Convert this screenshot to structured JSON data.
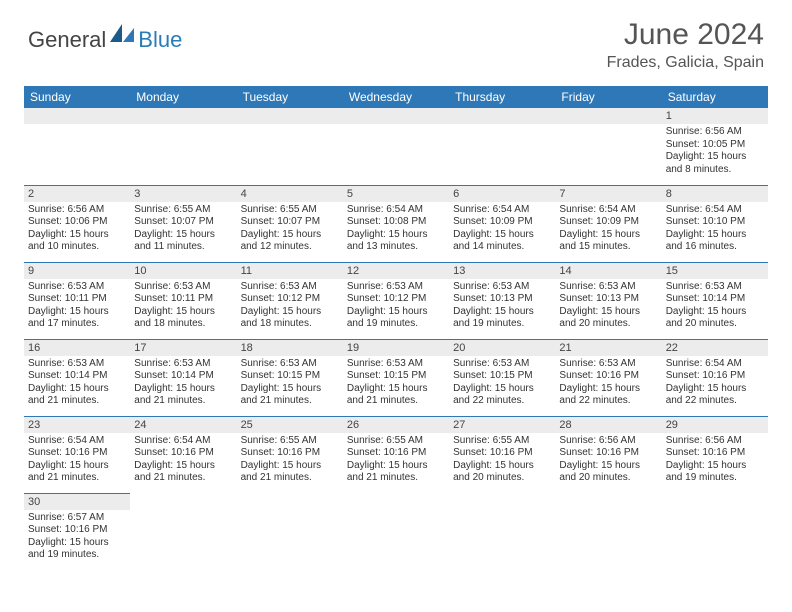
{
  "brand": {
    "general": "General",
    "blue": "Blue"
  },
  "title": {
    "month": "June 2024",
    "location": "Frades, Galicia, Spain"
  },
  "weekdays": [
    "Sunday",
    "Monday",
    "Tuesday",
    "Wednesday",
    "Thursday",
    "Friday",
    "Saturday"
  ],
  "colors": {
    "header_bg": "#2f78b7",
    "row_divider": "#2f78b7",
    "daynum_bg": "#ececec",
    "text": "#333333",
    "title_text": "#555555"
  },
  "weeks": [
    [
      null,
      null,
      null,
      null,
      null,
      null,
      {
        "n": "1",
        "sr": "Sunrise: 6:56 AM",
        "ss": "Sunset: 10:05 PM",
        "dl1": "Daylight: 15 hours",
        "dl2": "and 8 minutes."
      }
    ],
    [
      {
        "n": "2",
        "sr": "Sunrise: 6:56 AM",
        "ss": "Sunset: 10:06 PM",
        "dl1": "Daylight: 15 hours",
        "dl2": "and 10 minutes."
      },
      {
        "n": "3",
        "sr": "Sunrise: 6:55 AM",
        "ss": "Sunset: 10:07 PM",
        "dl1": "Daylight: 15 hours",
        "dl2": "and 11 minutes."
      },
      {
        "n": "4",
        "sr": "Sunrise: 6:55 AM",
        "ss": "Sunset: 10:07 PM",
        "dl1": "Daylight: 15 hours",
        "dl2": "and 12 minutes."
      },
      {
        "n": "5",
        "sr": "Sunrise: 6:54 AM",
        "ss": "Sunset: 10:08 PM",
        "dl1": "Daylight: 15 hours",
        "dl2": "and 13 minutes."
      },
      {
        "n": "6",
        "sr": "Sunrise: 6:54 AM",
        "ss": "Sunset: 10:09 PM",
        "dl1": "Daylight: 15 hours",
        "dl2": "and 14 minutes."
      },
      {
        "n": "7",
        "sr": "Sunrise: 6:54 AM",
        "ss": "Sunset: 10:09 PM",
        "dl1": "Daylight: 15 hours",
        "dl2": "and 15 minutes."
      },
      {
        "n": "8",
        "sr": "Sunrise: 6:54 AM",
        "ss": "Sunset: 10:10 PM",
        "dl1": "Daylight: 15 hours",
        "dl2": "and 16 minutes."
      }
    ],
    [
      {
        "n": "9",
        "sr": "Sunrise: 6:53 AM",
        "ss": "Sunset: 10:11 PM",
        "dl1": "Daylight: 15 hours",
        "dl2": "and 17 minutes."
      },
      {
        "n": "10",
        "sr": "Sunrise: 6:53 AM",
        "ss": "Sunset: 10:11 PM",
        "dl1": "Daylight: 15 hours",
        "dl2": "and 18 minutes."
      },
      {
        "n": "11",
        "sr": "Sunrise: 6:53 AM",
        "ss": "Sunset: 10:12 PM",
        "dl1": "Daylight: 15 hours",
        "dl2": "and 18 minutes."
      },
      {
        "n": "12",
        "sr": "Sunrise: 6:53 AM",
        "ss": "Sunset: 10:12 PM",
        "dl1": "Daylight: 15 hours",
        "dl2": "and 19 minutes."
      },
      {
        "n": "13",
        "sr": "Sunrise: 6:53 AM",
        "ss": "Sunset: 10:13 PM",
        "dl1": "Daylight: 15 hours",
        "dl2": "and 19 minutes."
      },
      {
        "n": "14",
        "sr": "Sunrise: 6:53 AM",
        "ss": "Sunset: 10:13 PM",
        "dl1": "Daylight: 15 hours",
        "dl2": "and 20 minutes."
      },
      {
        "n": "15",
        "sr": "Sunrise: 6:53 AM",
        "ss": "Sunset: 10:14 PM",
        "dl1": "Daylight: 15 hours",
        "dl2": "and 20 minutes."
      }
    ],
    [
      {
        "n": "16",
        "sr": "Sunrise: 6:53 AM",
        "ss": "Sunset: 10:14 PM",
        "dl1": "Daylight: 15 hours",
        "dl2": "and 21 minutes."
      },
      {
        "n": "17",
        "sr": "Sunrise: 6:53 AM",
        "ss": "Sunset: 10:14 PM",
        "dl1": "Daylight: 15 hours",
        "dl2": "and 21 minutes."
      },
      {
        "n": "18",
        "sr": "Sunrise: 6:53 AM",
        "ss": "Sunset: 10:15 PM",
        "dl1": "Daylight: 15 hours",
        "dl2": "and 21 minutes."
      },
      {
        "n": "19",
        "sr": "Sunrise: 6:53 AM",
        "ss": "Sunset: 10:15 PM",
        "dl1": "Daylight: 15 hours",
        "dl2": "and 21 minutes."
      },
      {
        "n": "20",
        "sr": "Sunrise: 6:53 AM",
        "ss": "Sunset: 10:15 PM",
        "dl1": "Daylight: 15 hours",
        "dl2": "and 22 minutes."
      },
      {
        "n": "21",
        "sr": "Sunrise: 6:53 AM",
        "ss": "Sunset: 10:16 PM",
        "dl1": "Daylight: 15 hours",
        "dl2": "and 22 minutes."
      },
      {
        "n": "22",
        "sr": "Sunrise: 6:54 AM",
        "ss": "Sunset: 10:16 PM",
        "dl1": "Daylight: 15 hours",
        "dl2": "and 22 minutes."
      }
    ],
    [
      {
        "n": "23",
        "sr": "Sunrise: 6:54 AM",
        "ss": "Sunset: 10:16 PM",
        "dl1": "Daylight: 15 hours",
        "dl2": "and 21 minutes."
      },
      {
        "n": "24",
        "sr": "Sunrise: 6:54 AM",
        "ss": "Sunset: 10:16 PM",
        "dl1": "Daylight: 15 hours",
        "dl2": "and 21 minutes."
      },
      {
        "n": "25",
        "sr": "Sunrise: 6:55 AM",
        "ss": "Sunset: 10:16 PM",
        "dl1": "Daylight: 15 hours",
        "dl2": "and 21 minutes."
      },
      {
        "n": "26",
        "sr": "Sunrise: 6:55 AM",
        "ss": "Sunset: 10:16 PM",
        "dl1": "Daylight: 15 hours",
        "dl2": "and 21 minutes."
      },
      {
        "n": "27",
        "sr": "Sunrise: 6:55 AM",
        "ss": "Sunset: 10:16 PM",
        "dl1": "Daylight: 15 hours",
        "dl2": "and 20 minutes."
      },
      {
        "n": "28",
        "sr": "Sunrise: 6:56 AM",
        "ss": "Sunset: 10:16 PM",
        "dl1": "Daylight: 15 hours",
        "dl2": "and 20 minutes."
      },
      {
        "n": "29",
        "sr": "Sunrise: 6:56 AM",
        "ss": "Sunset: 10:16 PM",
        "dl1": "Daylight: 15 hours",
        "dl2": "and 19 minutes."
      }
    ],
    [
      {
        "n": "30",
        "sr": "Sunrise: 6:57 AM",
        "ss": "Sunset: 10:16 PM",
        "dl1": "Daylight: 15 hours",
        "dl2": "and 19 minutes."
      },
      null,
      null,
      null,
      null,
      null,
      null
    ]
  ]
}
